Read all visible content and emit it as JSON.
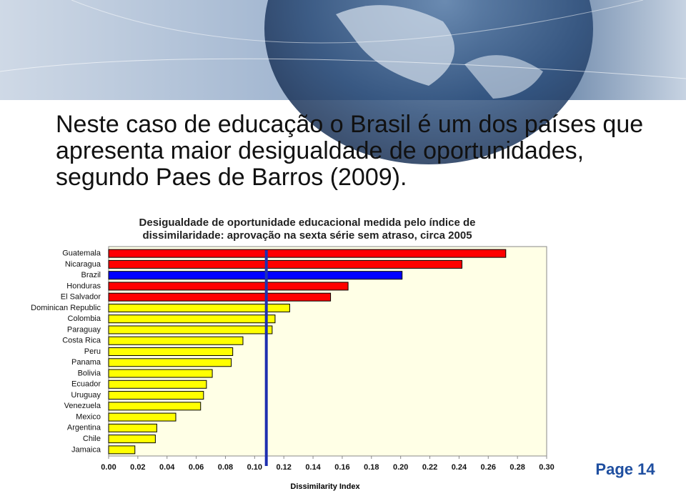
{
  "slide_title": [
    "Neste caso de educação o Brasil é um dos países que",
    "apresenta maior desigualdade de oportunidades,",
    "segundo Paes de Barros (2009)."
  ],
  "page_label": "Page 14",
  "chart_data": {
    "type": "barh",
    "title": [
      "Desigualdade de oportunidade educacional medida pelo índice de",
      "dissimilaridade: aprovação na sexta série sem atraso, circa 2005"
    ],
    "xlabel": "Dissimilarity Index",
    "categories": [
      "Guatemala",
      "Nicaragua",
      "Brazil",
      "Honduras",
      "El Salvador",
      "Dominican Republic",
      "Colombia",
      "Paraguay",
      "Costa Rica",
      "Peru",
      "Panama",
      "Bolivia",
      "Ecuador",
      "Uruguay",
      "Venezuela",
      "Mexico",
      "Argentina",
      "Chile",
      "Jamaica"
    ],
    "values": [
      0.272,
      0.242,
      0.201,
      0.164,
      0.152,
      0.124,
      0.114,
      0.112,
      0.092,
      0.085,
      0.084,
      0.071,
      0.067,
      0.065,
      0.063,
      0.046,
      0.033,
      0.032,
      0.018
    ],
    "colors": [
      "#ff0000",
      "#ff0000",
      "#0000ff",
      "#ff0000",
      "#ff0000",
      "#ffff00",
      "#ffff00",
      "#ffff00",
      "#ffff00",
      "#ffff00",
      "#ffff00",
      "#ffff00",
      "#ffff00",
      "#ffff00",
      "#ffff00",
      "#ffff00",
      "#ffff00",
      "#ffff00",
      "#ffff00"
    ],
    "reference_line": {
      "value": 0.108,
      "color": "#1f2fb0"
    },
    "xlim": [
      0,
      0.3
    ],
    "xticks": [
      {
        "value": 0,
        "label": "0.00"
      },
      {
        "value": 0.02,
        "label": "0.02"
      },
      {
        "value": 0.04,
        "label": "0.04"
      },
      {
        "value": 0.06,
        "label": "0.06"
      },
      {
        "value": 0.08,
        "label": "0.08"
      },
      {
        "value": 0.1,
        "label": "0.10"
      },
      {
        "value": 0.12,
        "label": "0.12"
      },
      {
        "value": 0.14,
        "label": "0.14"
      },
      {
        "value": 0.16,
        "label": "0.16"
      },
      {
        "value": 0.18,
        "label": "0.18"
      },
      {
        "value": 0.2,
        "label": "0.20"
      },
      {
        "value": 0.22,
        "label": "0.22"
      },
      {
        "value": 0.24,
        "label": "0.24"
      },
      {
        "value": 0.26,
        "label": "0.26"
      },
      {
        "value": 0.28,
        "label": "0.28"
      },
      {
        "value": 0.3,
        "label": "0.30"
      }
    ],
    "grid": false
  }
}
